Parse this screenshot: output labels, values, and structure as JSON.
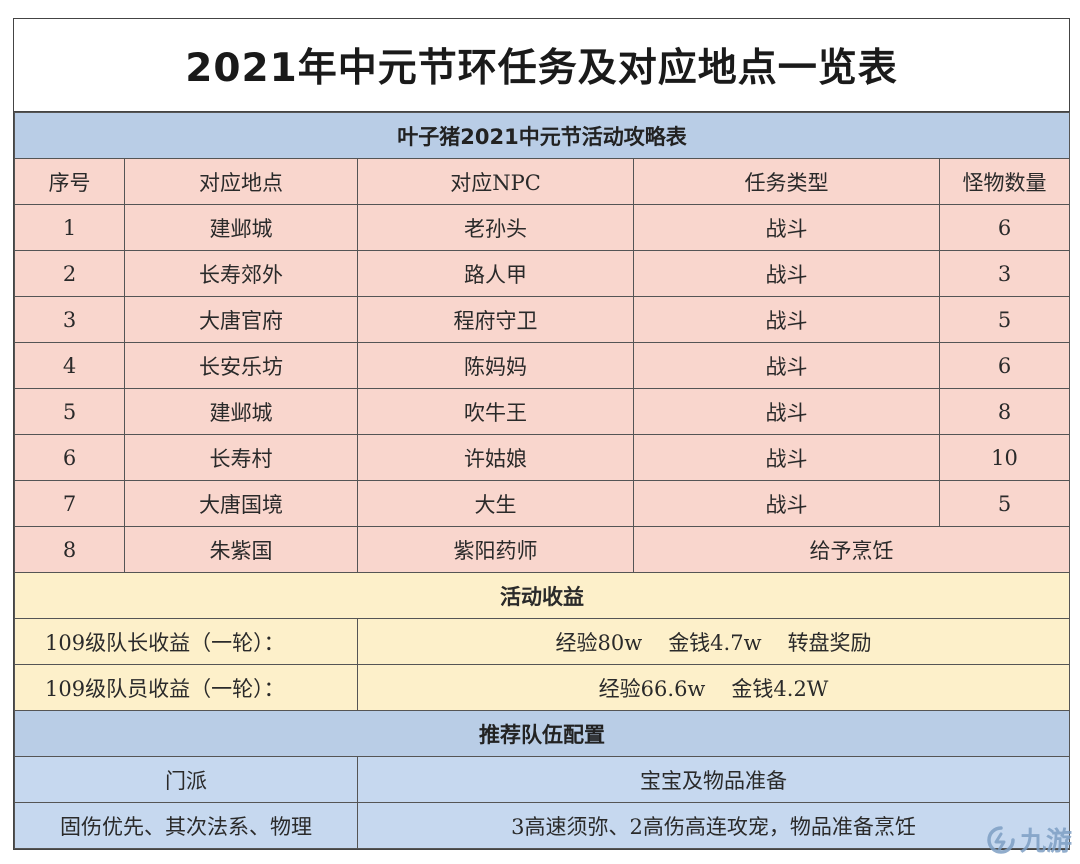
{
  "title": "2021年中元节环任务及对应地点一览表",
  "subtitle": "叶子猪2021中元节活动攻略表",
  "headers": [
    "序号",
    "对应地点",
    "对应NPC",
    "任务类型",
    "怪物数量"
  ],
  "tasks": [
    {
      "no": "1",
      "place": "建邺城",
      "npc": "老孙头",
      "type": "战斗",
      "count": "6"
    },
    {
      "no": "2",
      "place": "长寿郊外",
      "npc": "路人甲",
      "type": "战斗",
      "count": "3"
    },
    {
      "no": "3",
      "place": "大唐官府",
      "npc": "程府守卫",
      "type": "战斗",
      "count": "5"
    },
    {
      "no": "4",
      "place": "长安乐坊",
      "npc": "陈妈妈",
      "type": "战斗",
      "count": "6"
    },
    {
      "no": "5",
      "place": "建邺城",
      "npc": "吹牛王",
      "type": "战斗",
      "count": "8"
    },
    {
      "no": "6",
      "place": "长寿村",
      "npc": "许姑娘",
      "type": "战斗",
      "count": "10"
    },
    {
      "no": "7",
      "place": "大唐国境",
      "npc": "大生",
      "type": "战斗",
      "count": "5"
    }
  ],
  "task8": {
    "no": "8",
    "place": "朱紫国",
    "npc": "紫阳药师",
    "type": "给予烹饪"
  },
  "income": {
    "heading": "活动收益",
    "leader_label": "109级队长收益（一轮）：",
    "leader_exp": "经验80w",
    "leader_money": "金钱4.7w",
    "leader_extra": "转盘奖励",
    "member_label": "109级队员收益（一轮）：",
    "member_exp": "经验66.6w",
    "member_money": "金钱4.2W"
  },
  "team": {
    "heading": "推荐队伍配置",
    "col1_header": "门派",
    "col2_header": "宝宝及物品准备",
    "col1_value": "固伤优先、其次法系、物理",
    "col2_value": "3高速须弥、2高伤高连攻宠，物品准备烹饪"
  },
  "watermark": "九游",
  "colors": {
    "blue_head": "#b9cde6",
    "pink": "#f9d6cd",
    "yellow": "#fdf0ca",
    "blue": "#c6d8ef",
    "watermark": "#7e9fc4"
  }
}
